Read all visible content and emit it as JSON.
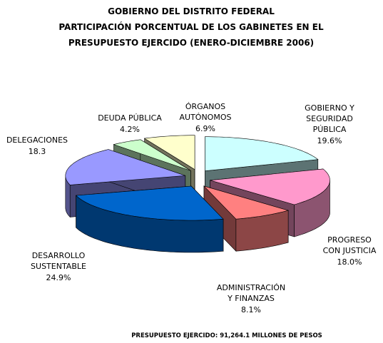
{
  "chart_data": {
    "type": "pie3d",
    "title": "GOBIERNO DEL DISTRITO FEDERAL\nPARTICIPACIÓN PORCENTUAL DE LOS GABINETES EN EL\nPRESUPUESTO EJERCIDO (ENERO-DICIEMBRE 2006)",
    "note": "PRESUPUESTO EJERCIDO: 91,264.1  MILLONES DE PESOS",
    "categories": [
      "GOBIERNO Y\nSEGURIDAD\nPÚBLICA",
      "PROGRESO\nCON JUSTICIA",
      "ADMINISTRACIÓN\nY FINANZAS",
      "DESARROLLO\nSUSTENTABLE",
      "DELEGACIONES",
      "DEUDA PÚBLICA",
      "ÓRGANOS\nAUTÓNOMOS"
    ],
    "values": [
      19.6,
      18.0,
      8.1,
      24.9,
      18.3,
      4.2,
      6.9
    ],
    "value_labels": [
      "19.6%",
      "18.0%",
      "8.1%",
      "24.9%",
      "18.3",
      "4.2%",
      "6.9%"
    ],
    "colors": [
      "#ccffff",
      "#ff99cc",
      "#ff8080",
      "#0066cc",
      "#9999ff",
      "#ccffcc",
      "#ffffcc"
    ]
  }
}
